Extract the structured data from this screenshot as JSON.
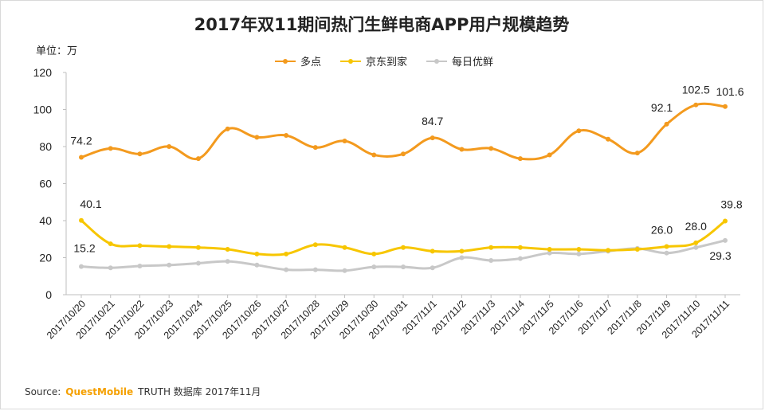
{
  "title": "2017年双11期间热门生鲜电商APP用户规模趋势",
  "unit_label": "单位：万",
  "source": {
    "prefix": "Source:",
    "brand": "QuestMobile",
    "rest": "TRUTH 数据库 2017年11月"
  },
  "chart_data": {
    "type": "line",
    "title": "2017年双11期间热门生鲜电商APP用户规模趋势",
    "ylabel": "单位：万",
    "ylim": [
      0,
      120
    ],
    "yticks": [
      "0",
      "20",
      "40",
      "60",
      "80",
      "100",
      "120"
    ],
    "grid": false,
    "legend": "top-center",
    "categories": [
      "2017/10/20",
      "2017/10/21",
      "2017/10/22",
      "2017/10/23",
      "2017/10/24",
      "2017/10/25",
      "2017/10/26",
      "2017/10/27",
      "2017/10/28",
      "2017/10/29",
      "2017/10/30",
      "2017/10/31",
      "2017/11/1",
      "2017/11/2",
      "2017/11/3",
      "2017/11/4",
      "2017/11/5",
      "2017/11/6",
      "2017/11/7",
      "2017/11/8",
      "2017/11/9",
      "2017/11/10",
      "2017/11/11"
    ],
    "series": [
      {
        "name": "多点",
        "color": "#f39a1e",
        "values": [
          74.2,
          79,
          76,
          80,
          73.5,
          89.5,
          85,
          86,
          79.5,
          83,
          75.5,
          76,
          84.7,
          78.5,
          79,
          73.5,
          75.5,
          88.5,
          84,
          76.5,
          92.1,
          102.5,
          101.6
        ],
        "labels": [
          {
            "index": 0,
            "text": "74.2"
          },
          {
            "index": 12,
            "text": "84.7"
          },
          {
            "index": 20,
            "text": "92.1"
          },
          {
            "index": 21,
            "text": "102.5"
          },
          {
            "index": 22,
            "text": "101.6"
          }
        ]
      },
      {
        "name": "京东到家",
        "color": "#f7c600",
        "values": [
          40.1,
          27.5,
          26.5,
          26,
          25.5,
          24.5,
          22,
          22,
          27,
          25.5,
          22,
          25.5,
          23.5,
          23.5,
          25.5,
          25.5,
          24.5,
          24.5,
          24,
          24.5,
          26.0,
          28.0,
          39.8
        ],
        "labels": [
          {
            "index": 0,
            "text": "40.1"
          },
          {
            "index": 20,
            "text": "26.0"
          },
          {
            "index": 21,
            "text": "28.0"
          },
          {
            "index": 22,
            "text": "39.8"
          }
        ]
      },
      {
        "name": "每日优鲜",
        "color": "#c8c8c8",
        "values": [
          15.2,
          14.5,
          15.5,
          16,
          17,
          18,
          16,
          13.5,
          13.5,
          13,
          15,
          15,
          14.5,
          20,
          18.5,
          19.5,
          22.5,
          22,
          23.5,
          25,
          22.5,
          25.5,
          29.3
        ],
        "labels": [
          {
            "index": 0,
            "text": "15.2"
          },
          {
            "index": 22,
            "text": "29.3"
          }
        ]
      }
    ]
  }
}
